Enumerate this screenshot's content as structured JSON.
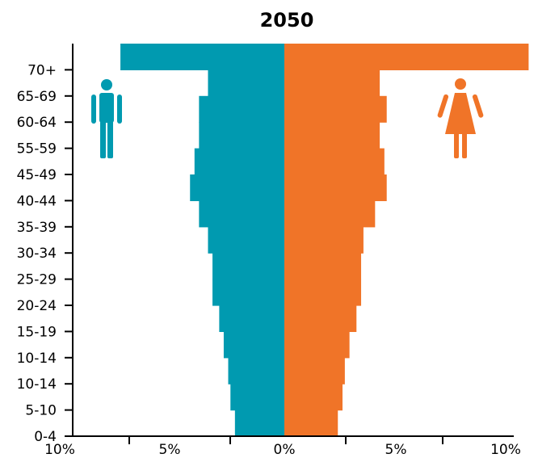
{
  "chart_data": {
    "type": "bar",
    "orientation": "horizontal",
    "layout": "population-pyramid",
    "title": "2050",
    "categories": [
      "0-4",
      "5-10",
      "10-14",
      "10-14",
      "15-19",
      "20-24",
      "25-29",
      "30-34",
      "35-39",
      "40-44",
      "45-49",
      "55-59",
      "60-64",
      "65-69",
      "70+"
    ],
    "series": [
      {
        "icon": "male-icon",
        "color": "#009AB0",
        "values": [
          2.2,
          2.4,
          2.5,
          2.7,
          2.9,
          3.2,
          3.2,
          3.4,
          3.8,
          4.2,
          4.0,
          3.8,
          3.8,
          3.4,
          7.3
        ]
      },
      {
        "icon": "female-icon",
        "color": "#F07428",
        "values": [
          2.3,
          2.5,
          2.6,
          2.8,
          3.1,
          3.3,
          3.3,
          3.4,
          3.9,
          4.4,
          4.3,
          4.1,
          4.4,
          4.1,
          10.5
        ]
      }
    ],
    "xlim": [
      -10,
      10
    ],
    "x_ticks": [
      -10,
      -5,
      0,
      5,
      10
    ],
    "x_tick_labels": [
      "10%",
      "5%",
      "0%",
      "5%",
      "10%"
    ],
    "grid": false
  }
}
